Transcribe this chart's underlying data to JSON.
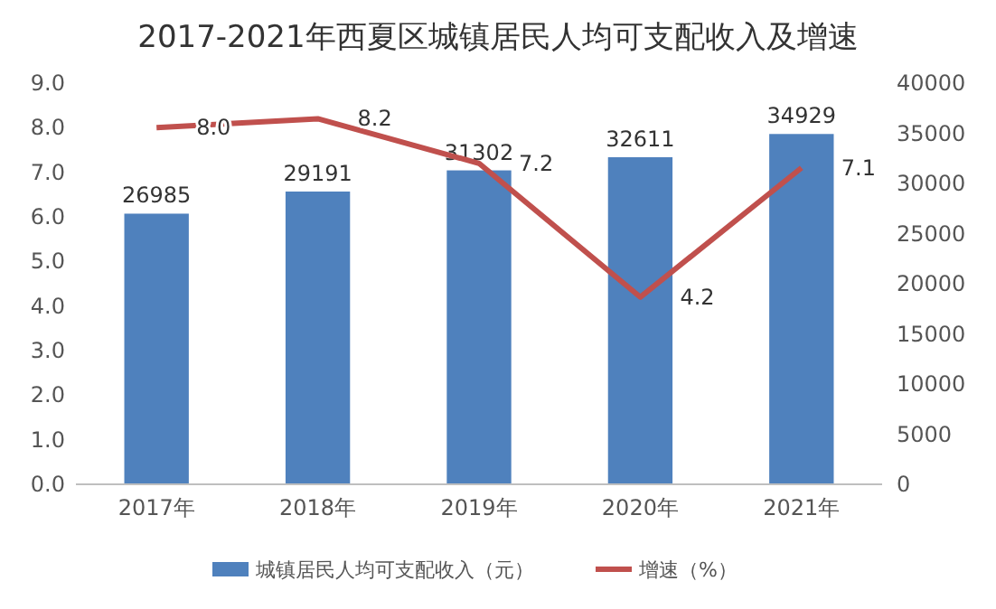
{
  "chart_data": {
    "type": "bar",
    "title": "2017-2021年西夏区城镇居民人均可支配收入及增速",
    "categories": [
      "2017年",
      "2018年",
      "2019年",
      "2020年",
      "2021年"
    ],
    "series": [
      {
        "name": "城镇居民人均可支配收入（元）",
        "axis": "y2",
        "color": "#4f81bd",
        "values": [
          26985,
          29191,
          31302,
          32611,
          34929
        ]
      },
      {
        "name": "增速（%）",
        "type": "line",
        "axis": "y",
        "color": "#c0504d",
        "values": [
          8.0,
          8.2,
          7.2,
          4.2,
          7.1
        ],
        "value_labels": [
          "8.0",
          "8.2",
          "7.2",
          "4.2",
          "7.1"
        ]
      }
    ],
    "ylim": [
      0,
      9
    ],
    "yticks": [
      {
        "value": 0,
        "label": "0.0"
      },
      {
        "value": 1,
        "label": "1.0"
      },
      {
        "value": 2,
        "label": "2.0"
      },
      {
        "value": 3,
        "label": "3.0"
      },
      {
        "value": 4,
        "label": "4.0"
      },
      {
        "value": 5,
        "label": "5.0"
      },
      {
        "value": 6,
        "label": "6.0"
      },
      {
        "value": 7,
        "label": "7.0"
      },
      {
        "value": 8,
        "label": "8.0"
      },
      {
        "value": 9,
        "label": "9.0"
      }
    ],
    "y2lim": [
      0,
      40000
    ],
    "y2ticks": [
      0,
      5000,
      10000,
      15000,
      20000,
      25000,
      30000,
      35000,
      40000
    ],
    "data_labels": true,
    "legend": "bottom",
    "grid": false,
    "marker": "none",
    "line_style": "solid"
  }
}
